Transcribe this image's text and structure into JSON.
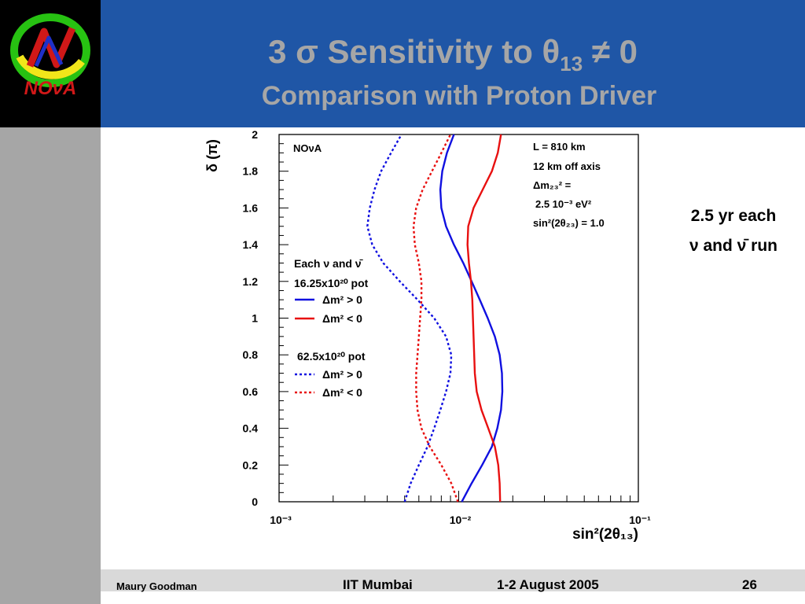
{
  "slide": {
    "logo_text": "NOνA",
    "title_pre": "3 σ Sensitivity to θ",
    "title_sub": "13",
    "title_post": " ≠ 0",
    "subtitle": "Comparison with Proton Driver",
    "note_line1": "2.5 yr each",
    "note_line2": "ν and ν̄ run",
    "footer": {
      "author": "Maury Goodman",
      "venue": "IIT Mumbai",
      "date": "1-2 August 2005",
      "page": "26"
    }
  },
  "chart_data": {
    "type": "line",
    "xlabel": "sin²(2θ₁₃)",
    "ylabel": "δ (π)",
    "xscale": "log",
    "xlim": [
      0.001,
      0.1
    ],
    "ylim": [
      0,
      2
    ],
    "x_tick_labels": [
      "10⁻³",
      "10⁻²",
      "10⁻¹"
    ],
    "y_tick_labels": [
      "0",
      "0.2",
      "0.4",
      "0.6",
      "0.8",
      "1",
      "1.2",
      "1.4",
      "1.6",
      "1.8",
      "2"
    ],
    "experiment_label": "NOνA",
    "info_lines": [
      "L = 810 km",
      "12 km off axis",
      "Δm₂₃² =",
      "2.5 10⁻³ eV²",
      "sin²(2θ₂₃) = 1.0"
    ],
    "legend": {
      "group1_title": "Each ν and ν̄",
      "group1_pot": "16.25x10²⁰ pot",
      "group2_pot": "62.5x10²⁰ pot",
      "label_pos": "Δm² > 0",
      "label_neg": "Δm² < 0"
    },
    "colors": {
      "blue": "#1010e0",
      "red": "#e81010"
    },
    "series": [
      {
        "group": 1,
        "dashed": false,
        "color": "blue",
        "y": [
          0,
          0.1,
          0.2,
          0.3,
          0.4,
          0.5,
          0.6,
          0.7,
          0.8,
          0.9,
          1.0,
          1.1,
          1.2,
          1.3,
          1.4,
          1.5,
          1.6,
          1.7,
          1.8,
          1.9,
          2.0
        ],
        "x": [
          0.0104,
          0.0118,
          0.0135,
          0.0153,
          0.0164,
          0.0172,
          0.0175,
          0.0174,
          0.0169,
          0.0159,
          0.0145,
          0.0131,
          0.0118,
          0.0106,
          0.0094,
          0.0085,
          0.008,
          0.0079,
          0.0081,
          0.0086,
          0.0094
        ]
      },
      {
        "group": 1,
        "dashed": false,
        "color": "red",
        "y": [
          0,
          0.1,
          0.2,
          0.3,
          0.4,
          0.5,
          0.6,
          0.7,
          0.8,
          0.9,
          1.0,
          1.1,
          1.2,
          1.3,
          1.4,
          1.5,
          1.6,
          1.7,
          1.8,
          1.9,
          2.0
        ],
        "x": [
          0.017,
          0.0169,
          0.0166,
          0.0159,
          0.0146,
          0.0134,
          0.0126,
          0.0123,
          0.0122,
          0.0121,
          0.012,
          0.0119,
          0.0117,
          0.0114,
          0.0112,
          0.0113,
          0.0121,
          0.0136,
          0.0153,
          0.0165,
          0.0172
        ]
      },
      {
        "group": 2,
        "dashed": true,
        "color": "blue",
        "y": [
          0,
          0.1,
          0.2,
          0.3,
          0.4,
          0.5,
          0.6,
          0.7,
          0.8,
          0.9,
          1.0,
          1.1,
          1.2,
          1.3,
          1.4,
          1.5,
          1.6,
          1.7,
          1.8,
          1.9,
          2.0
        ],
        "x": [
          0.005,
          0.0054,
          0.006,
          0.0067,
          0.0073,
          0.0079,
          0.0085,
          0.009,
          0.0091,
          0.0085,
          0.0073,
          0.0059,
          0.0047,
          0.0038,
          0.0033,
          0.0031,
          0.0032,
          0.0034,
          0.0037,
          0.0042,
          0.0048
        ]
      },
      {
        "group": 2,
        "dashed": true,
        "color": "red",
        "y": [
          0,
          0.1,
          0.2,
          0.3,
          0.4,
          0.5,
          0.6,
          0.7,
          0.8,
          0.9,
          1.0,
          1.1,
          1.2,
          1.3,
          1.4,
          1.5,
          1.6,
          1.7,
          1.8,
          1.9,
          2.0
        ],
        "x": [
          0.0099,
          0.0091,
          0.008,
          0.0069,
          0.0062,
          0.0059,
          0.0058,
          0.0058,
          0.0059,
          0.006,
          0.0061,
          0.0062,
          0.0062,
          0.006,
          0.0057,
          0.0056,
          0.0058,
          0.0063,
          0.0071,
          0.008,
          0.009
        ]
      }
    ]
  }
}
